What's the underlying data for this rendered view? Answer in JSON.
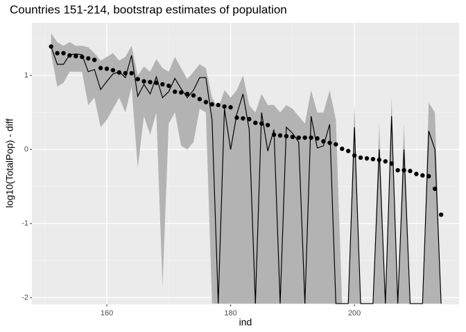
{
  "chart_data": {
    "type": "line",
    "title": "Countries 151-214, bootstrap estimates of population",
    "x_label": "ind",
    "y_label": "log10(TotalPop) - diff",
    "xlim": [
      147.9,
      216.9
    ],
    "ylim": [
      -2.09,
      1.71
    ],
    "xticks": [
      160,
      180,
      200
    ],
    "yticks": [
      -2,
      -1,
      0,
      1
    ],
    "grid": true,
    "x": [
      151,
      152,
      153,
      154,
      155,
      156,
      157,
      158,
      159,
      160,
      161,
      162,
      163,
      164,
      165,
      166,
      167,
      168,
      169,
      170,
      171,
      172,
      173,
      174,
      175,
      176,
      177,
      178,
      179,
      180,
      181,
      182,
      183,
      184,
      185,
      186,
      187,
      188,
      189,
      190,
      191,
      192,
      193,
      194,
      195,
      196,
      197,
      198,
      199,
      200,
      201,
      202,
      203,
      204,
      205,
      206,
      207,
      208,
      209,
      210,
      211,
      212,
      213,
      214
    ],
    "points": [
      1.39,
      1.3,
      1.3,
      1.27,
      1.26,
      1.25,
      1.23,
      1.21,
      1.1,
      1.09,
      1.07,
      1.04,
      1.03,
      1.03,
      0.95,
      0.92,
      0.91,
      0.9,
      0.88,
      0.86,
      0.78,
      0.77,
      0.75,
      0.73,
      0.68,
      0.64,
      0.61,
      0.6,
      0.58,
      0.57,
      0.43,
      0.42,
      0.41,
      0.36,
      0.35,
      0.33,
      0.2,
      0.19,
      0.18,
      0.17,
      0.16,
      0.16,
      0.16,
      0.15,
      0.11,
      0.09,
      0.07,
      0.01,
      -0.02,
      -0.08,
      -0.11,
      -0.12,
      -0.13,
      -0.14,
      -0.16,
      -0.19,
      -0.28,
      -0.28,
      -0.29,
      -0.33,
      -0.35,
      -0.36,
      -0.53,
      -0.88
    ],
    "points_color": "#000000",
    "line": [
      1.39,
      1.15,
      1.15,
      1.28,
      1.29,
      1.28,
      1.05,
      1.08,
      0.81,
      0.92,
      1.02,
      1.05,
      0.97,
      1.27,
      0.72,
      0.88,
      0.75,
      0.98,
      0.7,
      0.78,
      0.96,
      0.82,
      0.7,
      0.8,
      0.97,
      0.97,
      0.4,
      -2.08,
      0.55,
      0.0,
      0.48,
      0.75,
      0.27,
      -2.08,
      0.5,
      -0.02,
      0.27,
      -2.08,
      0.3,
      0.22,
      0.1,
      -2.08,
      0.45,
      0.02,
      0.05,
      0.34,
      -2.08,
      -2.08,
      -2.08,
      0.3,
      -2.08,
      -2.08,
      -2.08,
      0.0,
      -2.08,
      0.45,
      -2.08,
      0.0,
      -2.08,
      -2.08,
      -2.08,
      0.25,
      0.0,
      -2.08
    ],
    "line_color": "#000000",
    "ribbon_upper": [
      1.57,
      1.45,
      1.4,
      1.45,
      1.4,
      1.4,
      1.38,
      1.3,
      1.2,
      1.25,
      1.3,
      1.2,
      1.25,
      1.4,
      1.0,
      1.12,
      1.05,
      1.22,
      1.1,
      1.05,
      1.25,
      1.1,
      0.95,
      1.05,
      1.15,
      1.1,
      0.7,
      0.55,
      0.8,
      0.7,
      0.8,
      1.0,
      0.6,
      0.5,
      0.75,
      0.6,
      0.6,
      0.5,
      0.6,
      0.55,
      0.45,
      0.35,
      0.8,
      0.5,
      0.5,
      0.8,
      0.4,
      -2.08,
      -2.08,
      0.6,
      -2.08,
      -2.08,
      -2.08,
      0.35,
      -2.08,
      0.7,
      -2.08,
      0.35,
      -2.08,
      -2.08,
      -2.08,
      0.63,
      0.5,
      -2.08
    ],
    "ribbon_lower": [
      1.3,
      0.85,
      0.9,
      1.05,
      1.05,
      1.05,
      0.6,
      0.7,
      0.3,
      0.4,
      0.55,
      0.7,
      0.5,
      0.85,
      -0.25,
      0.45,
      0.2,
      0.5,
      -1.85,
      0.35,
      0.5,
      0.05,
      0.0,
      0.1,
      0.55,
      0.5,
      -2.08,
      -2.08,
      -2.08,
      -2.08,
      -2.08,
      -2.08,
      -2.08,
      -2.08,
      -2.08,
      -2.08,
      -2.08,
      -2.08,
      -2.08,
      -2.08,
      -2.08,
      -2.08,
      -2.08,
      -2.08,
      -2.08,
      -2.08,
      -2.08,
      -2.08,
      -2.08,
      -2.08,
      -2.08,
      -2.08,
      -2.08,
      -2.08,
      -2.08,
      -2.08,
      -2.08,
      -2.08,
      -2.08,
      -2.08,
      -2.08,
      -2.08,
      -2.08,
      -2.08
    ],
    "ribbon_color": "#b3b3b3"
  }
}
